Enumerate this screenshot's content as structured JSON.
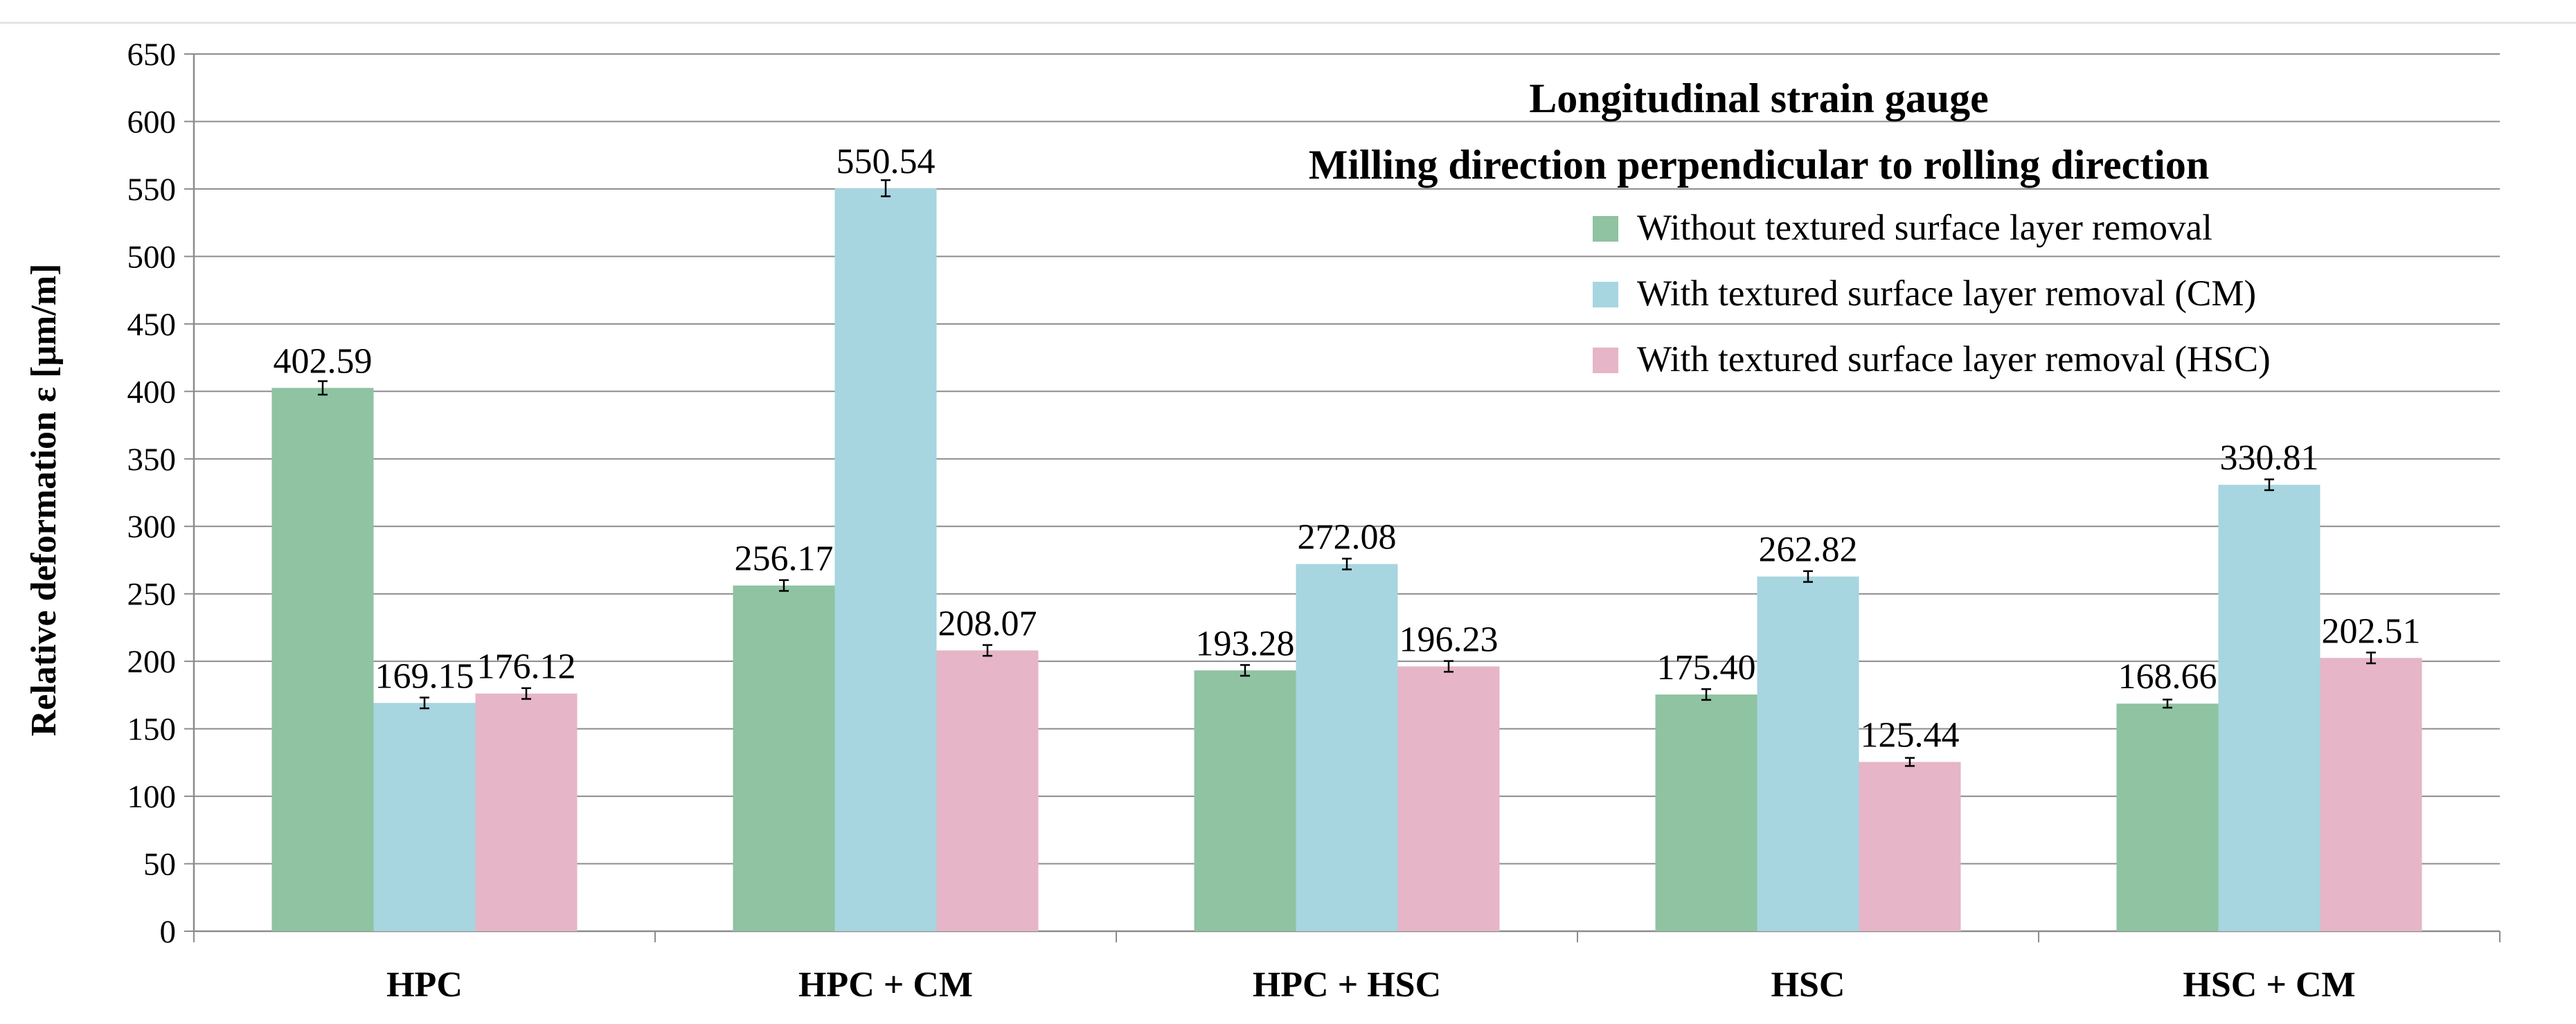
{
  "chart_data": {
    "type": "bar",
    "title": "Longitudinal strain gauge",
    "subtitle": "Milling direction perpendicular to rolling direction",
    "xlabel": "",
    "ylabel": "Relative deformation ε [μm/m]",
    "ylim": [
      0,
      650
    ],
    "yticks": [
      0,
      50,
      100,
      150,
      200,
      250,
      300,
      350,
      400,
      450,
      500,
      550,
      600,
      650
    ],
    "grid": true,
    "legend_position": "top-right",
    "categories": [
      "HPC",
      "HPC + CM",
      "HPC + HSC",
      "HSC",
      "HSC + CM"
    ],
    "series": [
      {
        "name": "Without textured surface layer removal",
        "color": "#8fc3a1",
        "values": [
          402.59,
          256.17,
          193.28,
          175.4,
          168.66
        ],
        "labels": [
          "402.59",
          "256.17",
          "193.28",
          "175.40",
          "168.66"
        ],
        "errors": [
          5,
          4,
          4,
          4,
          3
        ]
      },
      {
        "name": "With textured surface layer removal (CM)",
        "color": "#a7d5e0",
        "values": [
          169.15,
          550.54,
          272.08,
          262.82,
          330.81
        ],
        "labels": [
          "169.15",
          "550.54",
          "272.08",
          "262.82",
          "330.81"
        ],
        "errors": [
          4,
          6,
          4,
          4,
          4
        ]
      },
      {
        "name": "With textured surface layer removal (HSC)",
        "color": "#e6b5c8",
        "values": [
          176.12,
          208.07,
          196.23,
          125.44,
          202.51
        ],
        "labels": [
          "176.12",
          "208.07",
          "196.23",
          "125.44",
          "202.51"
        ],
        "errors": [
          4,
          4,
          4,
          3,
          4
        ]
      }
    ]
  }
}
